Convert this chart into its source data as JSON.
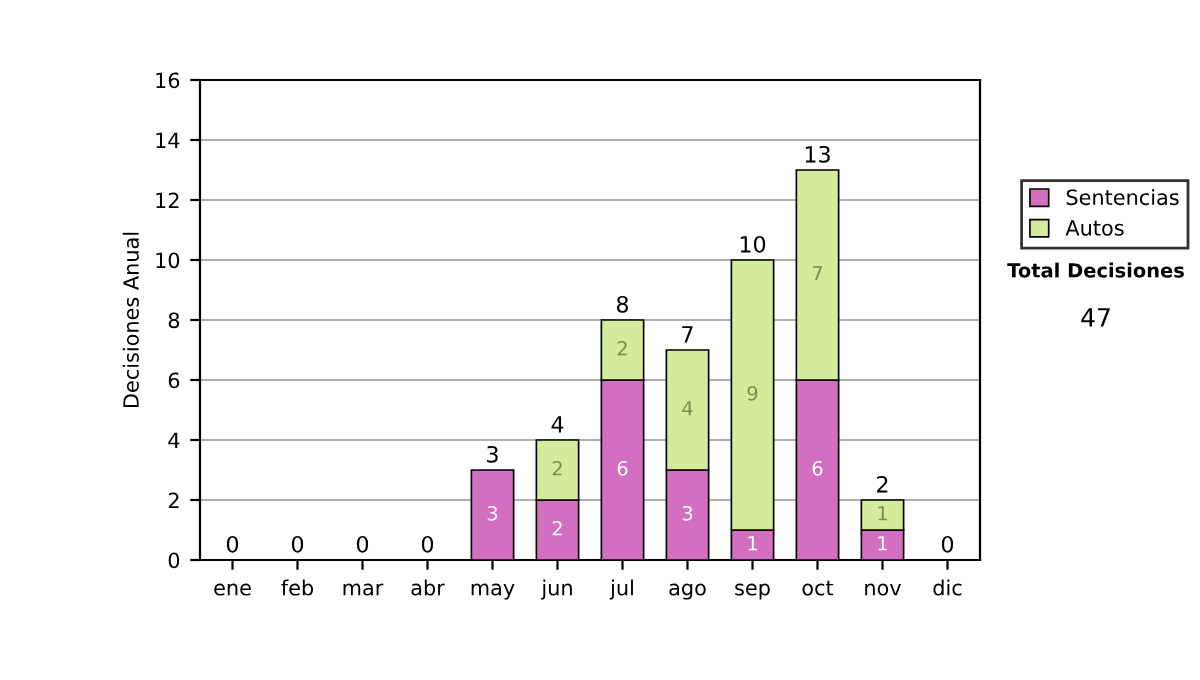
{
  "chart_data": {
    "type": "bar",
    "stacked": true,
    "ylabel": "Decisiones Anual",
    "categories": [
      "ene",
      "feb",
      "mar",
      "abr",
      "may",
      "jun",
      "jul",
      "ago",
      "sep",
      "oct",
      "nov",
      "dic"
    ],
    "series": [
      {
        "name": "Sentencias",
        "color": "#d26fc0",
        "values": [
          0,
          0,
          0,
          0,
          3,
          2,
          6,
          3,
          1,
          6,
          1,
          0
        ],
        "value_labels": [
          null,
          null,
          null,
          null,
          "3",
          "2",
          "6",
          "3",
          "1",
          "6",
          "1",
          null
        ]
      },
      {
        "name": "Autos",
        "color": "#d5eb9c",
        "values": [
          0,
          0,
          0,
          0,
          0,
          2,
          2,
          4,
          9,
          7,
          1,
          0
        ],
        "value_labels": [
          null,
          null,
          null,
          null,
          null,
          "2",
          "2",
          "4",
          "9",
          "7",
          "1",
          null
        ]
      }
    ],
    "totals": [
      "0",
      "0",
      "0",
      "0",
      "3",
      "4",
      "8",
      "7",
      "10",
      "13",
      "2",
      "0"
    ],
    "ylim": [
      0,
      16
    ],
    "yticks": [
      0,
      2,
      4,
      6,
      8,
      10,
      12,
      14,
      16
    ],
    "grid": "y",
    "legend": "right",
    "annotations": [
      "Total Decisiones",
      "47"
    ]
  }
}
